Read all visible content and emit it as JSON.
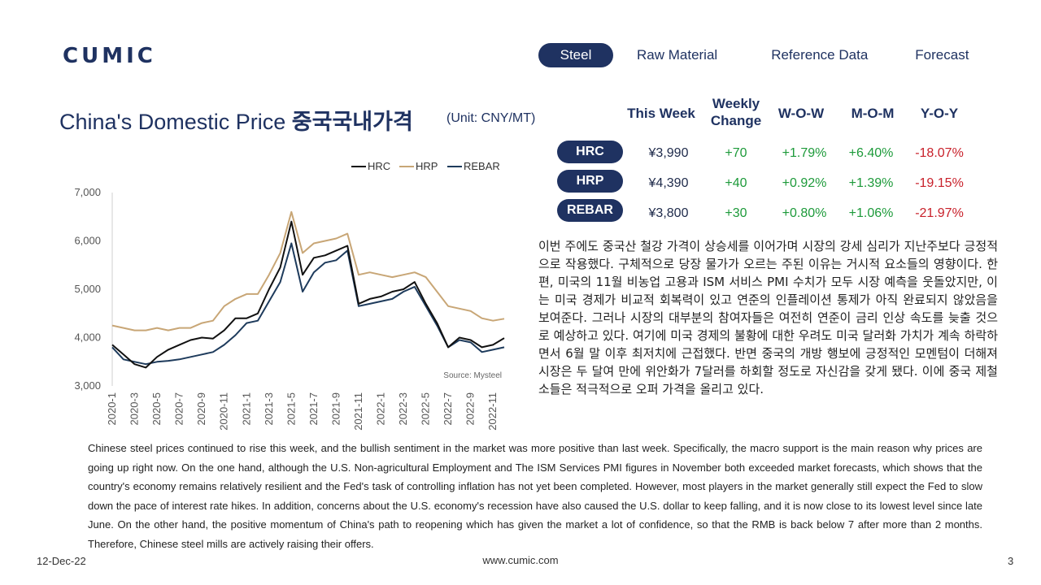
{
  "brand": {
    "logo": "CUMIC"
  },
  "nav": {
    "items": [
      "Steel",
      "Raw Material",
      "Reference Data",
      "Forecast"
    ],
    "active": "Steel"
  },
  "header": {
    "title_en": "China's Domestic Price",
    "title_kr": "중국국내가격",
    "unit": "(Unit: CNY/MT)"
  },
  "table": {
    "columns": [
      "This Week",
      "Weekly Change",
      "W-O-W",
      "M-O-M",
      "Y-O-Y"
    ],
    "column_lines": [
      [
        "This Week"
      ],
      [
        "Weekly",
        "Change"
      ],
      [
        "W-O-W"
      ],
      [
        "M-O-M"
      ],
      [
        "Y-O-Y"
      ]
    ],
    "rows": [
      {
        "name": "HRC",
        "price": "¥3,990",
        "change": "+70",
        "wow": "+1.79%",
        "mom": "+6.40%",
        "yoy": "-18.07%"
      },
      {
        "name": "HRP",
        "price": "¥4,390",
        "change": "+40",
        "wow": "+0.92%",
        "mom": "+1.39%",
        "yoy": "-19.15%"
      },
      {
        "name": "REBAR",
        "price": "¥3,800",
        "change": "+30",
        "wow": "+0.80%",
        "mom": "+1.06%",
        "yoy": "-21.97%"
      }
    ]
  },
  "colors": {
    "navy": "#1f3261",
    "up": "#1d9a3a",
    "down": "#c8202a",
    "hrc": "#111111",
    "hrp": "#c8a676",
    "rebar": "#1e3b5c"
  },
  "chart_data": {
    "type": "line",
    "source": "Source: Mysteel",
    "ylim": [
      3000,
      7000
    ],
    "yticks": [
      "7,000",
      "6,000",
      "5,000",
      "4,000",
      "3,000"
    ],
    "ytick_values": [
      7000,
      6000,
      5000,
      4000,
      3000
    ],
    "x_tick_labels": [
      "2020-1",
      "2020-3",
      "2020-5",
      "2020-7",
      "2020-9",
      "2020-11",
      "2021-1",
      "2021-3",
      "2021-5",
      "2021-7",
      "2021-9",
      "2021-11",
      "2022-1",
      "2022-3",
      "2022-5",
      "2022-7",
      "2022-9",
      "2022-11"
    ],
    "x": [
      "2020-01",
      "2020-02",
      "2020-03",
      "2020-04",
      "2020-05",
      "2020-06",
      "2020-07",
      "2020-08",
      "2020-09",
      "2020-10",
      "2020-11",
      "2020-12",
      "2021-01",
      "2021-02",
      "2021-03",
      "2021-04",
      "2021-05",
      "2021-06",
      "2021-07",
      "2021-08",
      "2021-09",
      "2021-10",
      "2021-11",
      "2021-12",
      "2022-01",
      "2022-02",
      "2022-03",
      "2022-04",
      "2022-05",
      "2022-06",
      "2022-07",
      "2022-08",
      "2022-09",
      "2022-10",
      "2022-11",
      "2022-12"
    ],
    "series": [
      {
        "name": "HRC",
        "values": [
          3850,
          3650,
          3450,
          3380,
          3600,
          3750,
          3850,
          3950,
          4000,
          3980,
          4150,
          4400,
          4400,
          4500,
          5000,
          5450,
          6400,
          5300,
          5650,
          5700,
          5800,
          5900,
          4700,
          4800,
          4850,
          4950,
          5000,
          5150,
          4700,
          4300,
          3800,
          4000,
          3950,
          3800,
          3850,
          3990
        ]
      },
      {
        "name": "HRP",
        "values": [
          4250,
          4200,
          4150,
          4150,
          4200,
          4150,
          4200,
          4200,
          4300,
          4350,
          4650,
          4800,
          4900,
          4900,
          5300,
          5750,
          6600,
          5750,
          5950,
          6000,
          6050,
          6150,
          5300,
          5350,
          5300,
          5250,
          5300,
          5350,
          5250,
          4950,
          4650,
          4600,
          4550,
          4400,
          4350,
          4390
        ]
      },
      {
        "name": "REBAR",
        "values": [
          3800,
          3550,
          3500,
          3450,
          3500,
          3520,
          3550,
          3600,
          3650,
          3700,
          3850,
          4050,
          4300,
          4350,
          4750,
          5150,
          5950,
          4950,
          5350,
          5550,
          5600,
          5800,
          4650,
          4700,
          4750,
          4800,
          4950,
          5050,
          4650,
          4250,
          3800,
          3950,
          3900,
          3700,
          3750,
          3800
        ]
      }
    ]
  },
  "commentary": {
    "kr": "이번 주에도 중국산 철강 가격이 상승세를 이어가며 시장의 강세 심리가 지난주보다 긍정적으로 작용했다. 구체적으로 당장 물가가 오르는 주된 이유는 거시적 요소들의 영향이다. 한편, 미국의 11월 비농업 고용과 ISM 서비스 PMI 수치가 모두 시장 예측을 웃돌았지만, 이는 미국 경제가 비교적 회복력이 있고 연준의 인플레이션 통제가 아직 완료되지 않았음을 보여준다. 그러나 시장의 대부분의 참여자들은 여전히 연준이 금리 인상 속도를 늦출 것으로 예상하고 있다. 여기에 미국 경제의 불황에 대한 우려도 미국 달러화 가치가 계속 하락하면서 6월 말 이후 최저치에 근접했다. 반면 중국의 개방 행보에 긍정적인 모멘텀이 더해져 시장은 두 달여 만에 위안화가 7달러를 하회할 정도로 자신감을 갖게 됐다. 이에 중국 제철소들은 적극적으로 오퍼 가격을 올리고 있다.",
    "en": "Chinese steel prices continued to rise this week, and the bullish sentiment in the market was more positive than last week. Specifically, the macro support is the main reason why prices are going up right now. On the one hand, although the U.S. Non-agricultural Employment and The ISM Services PMI figures in November both exceeded market forecasts, which shows that the country's economy remains relatively resilient and the Fed's task of controlling inflation has not yet been completed. However, most players in the market generally still expect the Fed to slow down the pace of interest rate hikes. In addition, concerns about the U.S. economy's recession have also caused the U.S. dollar to keep falling, and it is now close to its lowest level since late June. On the other hand, the positive momentum of China's path to reopening which has given the market a lot of confidence, so that the RMB is back below 7 after more than 2 months. Therefore, Chinese steel mills are actively raising their offers."
  },
  "footer": {
    "date": "12-Dec-22",
    "url": "www.cumic.com",
    "page": "3"
  }
}
